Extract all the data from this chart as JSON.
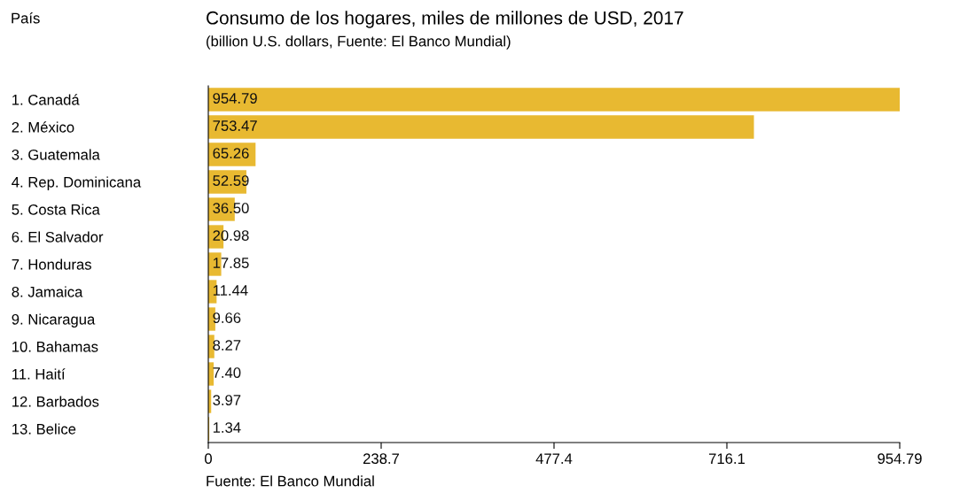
{
  "chart_data": {
    "type": "bar",
    "orientation": "horizontal",
    "title": "Consumo de los hogares, miles de millones de USD, 2017",
    "subtitle": "(billion U.S. dollars, Fuente: El Banco Mundial)",
    "ylabel": "País",
    "categories": [
      "1. Canadá",
      "2. México",
      "3. Guatemala",
      "4. Rep. Dominicana",
      "5. Costa Rica",
      "6. El Salvador",
      "7. Honduras",
      "8. Jamaica",
      "9. Nicaragua",
      "10. Bahamas",
      "11. Haití",
      "12. Barbados",
      "13. Belice"
    ],
    "values": [
      954.79,
      753.47,
      65.26,
      52.59,
      36.5,
      20.98,
      17.85,
      11.44,
      9.66,
      8.27,
      7.4,
      3.97,
      1.34
    ],
    "value_labels": [
      "954.79",
      "753.47",
      "65.26",
      "52.59",
      "36.50",
      "20.98",
      "17.85",
      "11.44",
      "9.66",
      "8.27",
      "7.40",
      "3.97",
      "1.34"
    ],
    "color": "#e8b931",
    "xlim": [
      0,
      954.79
    ],
    "xticks": [
      0,
      238.7,
      477.4,
      716.1,
      954.79
    ],
    "grid": false,
    "legend": false,
    "annotations": [
      "Fuente: El Banco Mundial"
    ]
  }
}
